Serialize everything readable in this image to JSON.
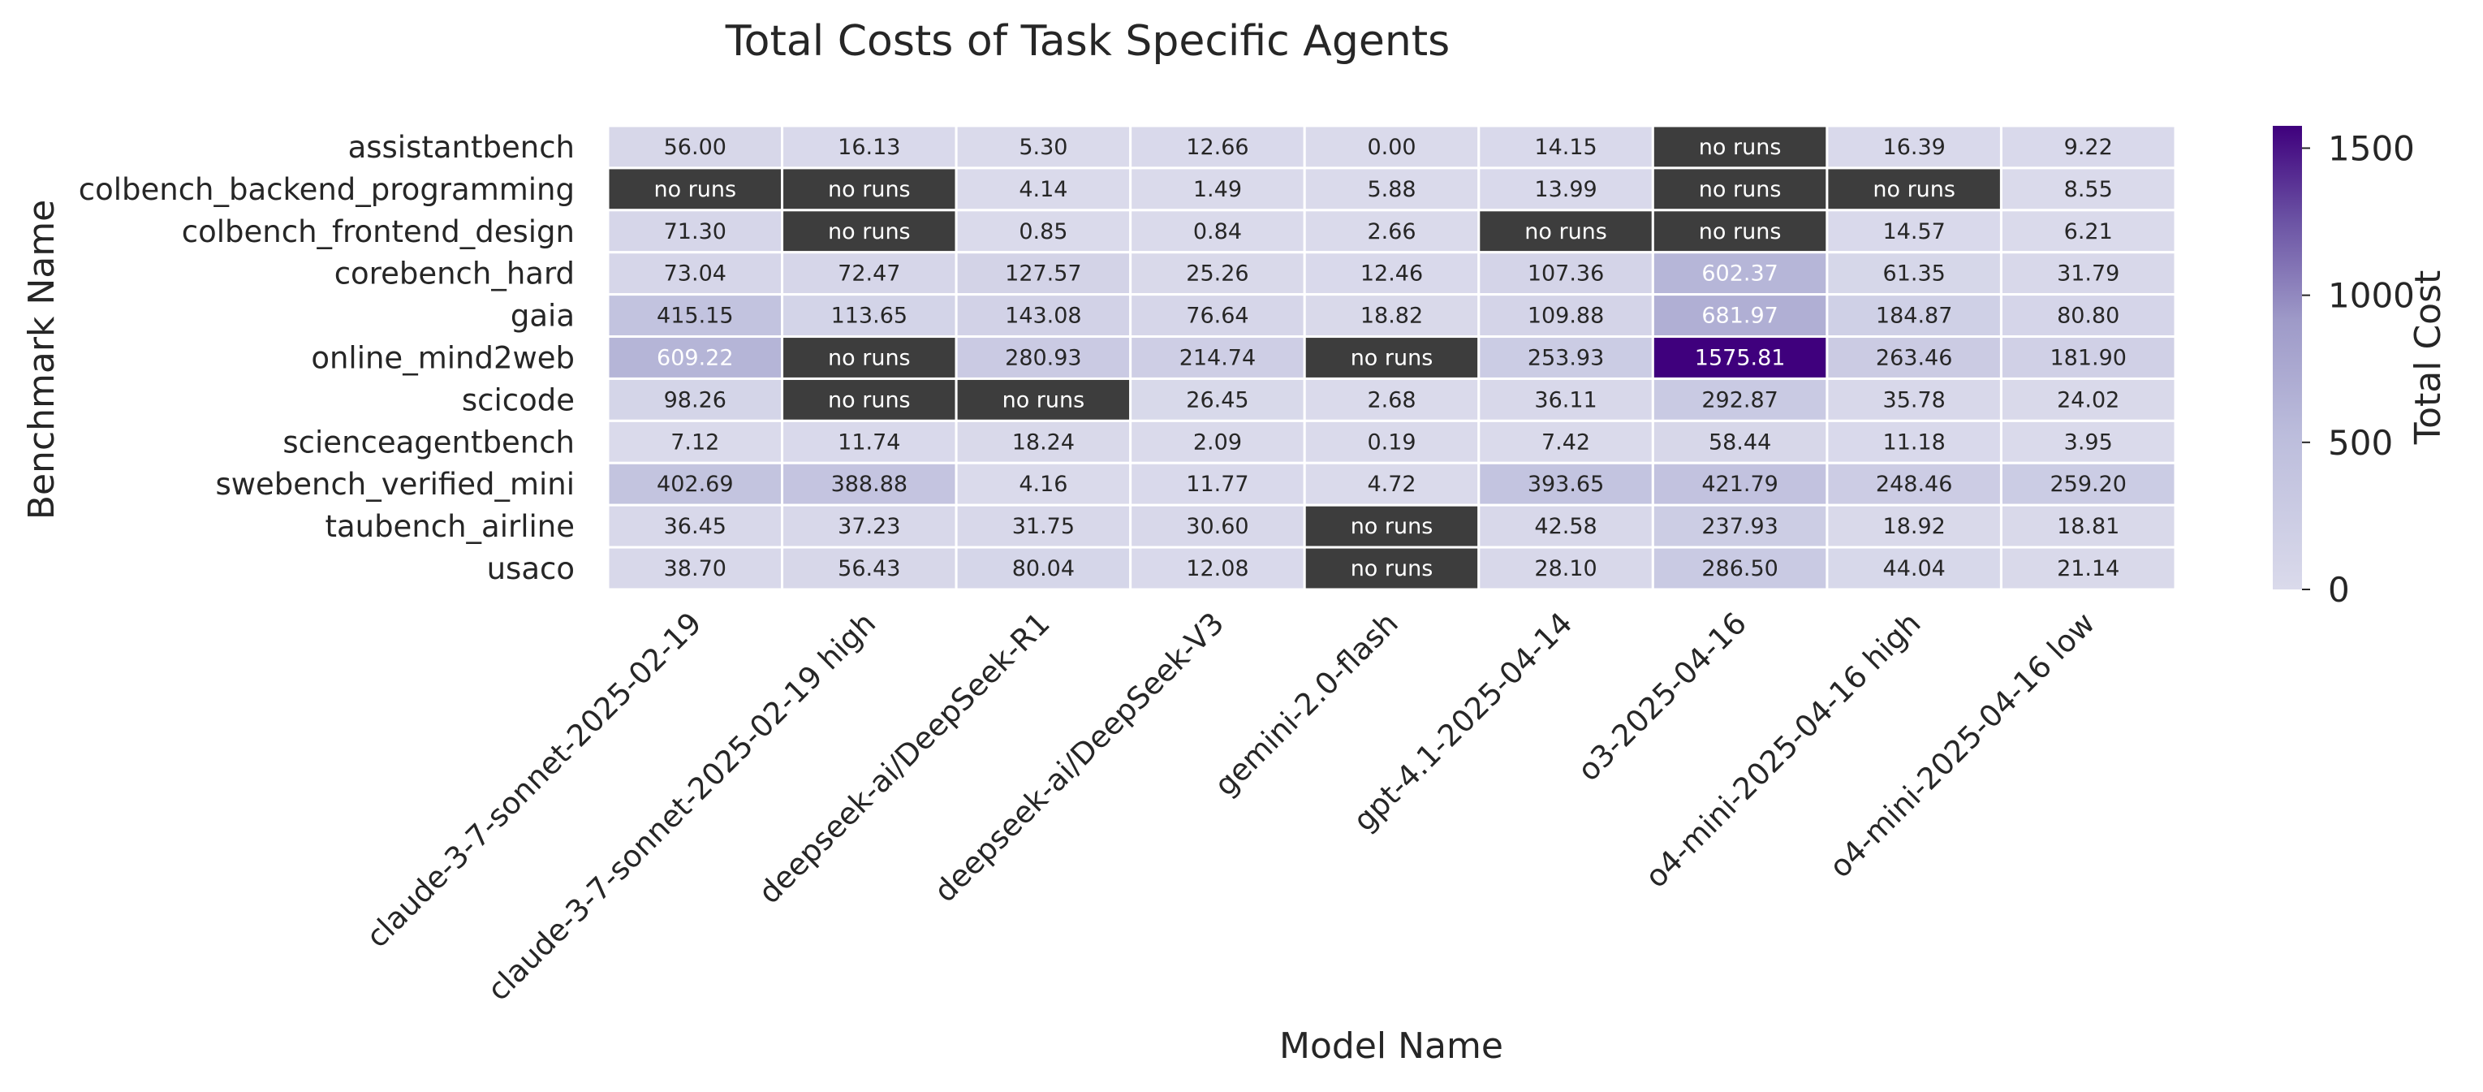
{
  "chart_data": {
    "type": "heatmap",
    "title": "Total Costs of Task Specific Agents",
    "xlabel": "Model Name",
    "ylabel": "Benchmark Name",
    "colorbar_label": "Total Cost",
    "colorbar_ticks": [
      0,
      500,
      1000,
      1500
    ],
    "value_range": [
      0,
      1575.81
    ],
    "missing_label": "no runs",
    "colormap": "Purples",
    "missing_color": "#3d3d3d",
    "grid": false,
    "legend": "colorbar-right",
    "columns": [
      "claude-3-7-sonnet-2025-02-19",
      "claude-3-7-sonnet-2025-02-19 high",
      "deepseek-ai/DeepSeek-R1",
      "deepseek-ai/DeepSeek-V3",
      "gemini-2.0-flash",
      "gpt-4.1-2025-04-14",
      "o3-2025-04-16",
      "o4-mini-2025-04-16 high",
      "o4-mini-2025-04-16 low"
    ],
    "rows": [
      "assistantbench",
      "colbench_backend_programming",
      "colbench_frontend_design",
      "corebench_hard",
      "gaia",
      "online_mind2web",
      "scicode",
      "scienceagentbench",
      "swebench_verified_mini",
      "taubench_airline",
      "usaco"
    ],
    "values": [
      [
        "56.00",
        "16.13",
        "5.30",
        "12.66",
        "0.00",
        "14.15",
        null,
        "16.39",
        "9.22"
      ],
      [
        null,
        null,
        "4.14",
        "1.49",
        "5.88",
        "13.99",
        null,
        null,
        "8.55"
      ],
      [
        "71.30",
        null,
        "0.85",
        "0.84",
        "2.66",
        null,
        null,
        "14.57",
        "6.21"
      ],
      [
        "73.04",
        "72.47",
        "127.57",
        "25.26",
        "12.46",
        "107.36",
        "602.37",
        "61.35",
        "31.79"
      ],
      [
        "415.15",
        "113.65",
        "143.08",
        "76.64",
        "18.82",
        "109.88",
        "681.97",
        "184.87",
        "80.80"
      ],
      [
        "609.22",
        null,
        "280.93",
        "214.74",
        null,
        "253.93",
        "1575.81",
        "263.46",
        "181.90"
      ],
      [
        "98.26",
        null,
        null,
        "26.45",
        "2.68",
        "36.11",
        "292.87",
        "35.78",
        "24.02"
      ],
      [
        "7.12",
        "11.74",
        "18.24",
        "2.09",
        "0.19",
        "7.42",
        "58.44",
        "11.18",
        "3.95"
      ],
      [
        "402.69",
        "388.88",
        "4.16",
        "11.77",
        "4.72",
        "393.65",
        "421.79",
        "248.46",
        "259.20"
      ],
      [
        "36.45",
        "37.23",
        "31.75",
        "30.60",
        null,
        "42.58",
        "237.93",
        "18.92",
        "18.81"
      ],
      [
        "38.70",
        "56.43",
        "80.04",
        "12.08",
        null,
        "28.10",
        "286.50",
        "44.04",
        "21.14"
      ]
    ]
  }
}
